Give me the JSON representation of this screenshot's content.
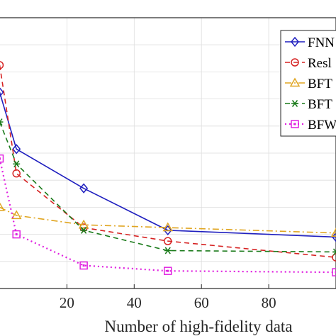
{
  "chart_data": {
    "type": "line",
    "title": "",
    "xlabel": "Number of high-fidelity data",
    "ylabel": "",
    "xlim": [
      -2,
      100
    ],
    "ylim": [
      0,
      1
    ],
    "x_ticks": [
      20,
      40,
      60,
      80
    ],
    "grid": true,
    "legend_position": "top-right",
    "series": [
      {
        "name": "FNN",
        "legend_label": "FNN",
        "color": "#1f1fbf",
        "marker": "diamond",
        "line_style": "solid",
        "x": [
          0,
          5,
          25,
          50,
          100
        ],
        "y": [
          0.725,
          0.515,
          0.37,
          0.215,
          0.19
        ]
      },
      {
        "name": "ResNet",
        "legend_label": "Resl",
        "color": "#d62222",
        "marker": "circle",
        "line_style": "dashed",
        "x": [
          0,
          5,
          25,
          50,
          100
        ],
        "y": [
          0.825,
          0.425,
          0.225,
          0.175,
          0.115
        ]
      },
      {
        "name": "BFT",
        "legend_label": "BFT",
        "color": "#e0a520",
        "marker": "triangle",
        "line_style": "dashdot",
        "x": [
          0,
          5,
          25,
          50,
          100
        ],
        "y": [
          0.3,
          0.27,
          0.235,
          0.225,
          0.205
        ]
      },
      {
        "name": "BFT",
        "legend_label": "BFT",
        "color": "#1a7a1a",
        "marker": "asterisk",
        "line_style": "dashed",
        "x": [
          0,
          5,
          25,
          50,
          100
        ],
        "y": [
          0.615,
          0.46,
          0.215,
          0.14,
          0.135
        ]
      },
      {
        "name": "BFW",
        "legend_label": "BFW",
        "color": "#e020e0",
        "marker": "square",
        "line_style": "dotted",
        "x": [
          0,
          5,
          25,
          50,
          100
        ],
        "y": [
          0.48,
          0.2,
          0.085,
          0.065,
          0.06
        ]
      }
    ]
  }
}
